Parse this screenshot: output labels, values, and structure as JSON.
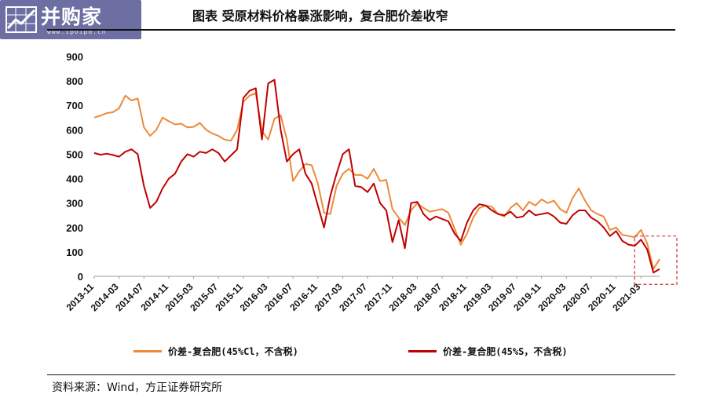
{
  "header": {
    "logo_text": "并购家",
    "logo_url": "www.ipoipo.cn",
    "title": "图表 受原材料价格暴涨影响，复合肥价差收窄"
  },
  "footer": {
    "source": "资料来源：Wind，方正证券研究所"
  },
  "chart_data": {
    "type": "line",
    "title": "图表 受原材料价格暴涨影响，复合肥价差收窄",
    "xlabel": "",
    "ylabel": "",
    "ylim": [
      0,
      900
    ],
    "yticks": [
      0,
      100,
      200,
      300,
      400,
      500,
      600,
      700,
      800,
      900
    ],
    "xlim": [
      "2013-11",
      "2021-06"
    ],
    "xticks": [
      "2013-11",
      "2014-03",
      "2014-07",
      "2014-11",
      "2015-03",
      "2015-07",
      "2015-11",
      "2016-03",
      "2016-07",
      "2016-11",
      "2017-03",
      "2017-07",
      "2017-11",
      "2018-03",
      "2018-07",
      "2018-11",
      "2019-03",
      "2019-07",
      "2019-11",
      "2020-03",
      "2020-07",
      "2020-11",
      "2021-03"
    ],
    "grid": false,
    "legend_position": "bottom",
    "highlight_box": {
      "x": [
        "2021-04",
        "2021-06"
      ],
      "y": [
        -20,
        165
      ],
      "style": "dashed",
      "color": "#d03030"
    },
    "series": [
      {
        "name": "价差-复合肥(45%Cl，不含税)",
        "color": "#ec8a3c",
        "points": [
          [
            "2013-11",
            650
          ],
          [
            "2013-12",
            658
          ],
          [
            "2014-01",
            668
          ],
          [
            "2014-02",
            672
          ],
          [
            "2014-03",
            688
          ],
          [
            "2014-04",
            740
          ],
          [
            "2014-05",
            720
          ],
          [
            "2014-06",
            728
          ],
          [
            "2014-07",
            610
          ],
          [
            "2014-08",
            575
          ],
          [
            "2014-09",
            600
          ],
          [
            "2014-10",
            650
          ],
          [
            "2014-11",
            635
          ],
          [
            "2014-12",
            622
          ],
          [
            "2015-01",
            625
          ],
          [
            "2015-02",
            610
          ],
          [
            "2015-03",
            612
          ],
          [
            "2015-04",
            628
          ],
          [
            "2015-05",
            600
          ],
          [
            "2015-06",
            585
          ],
          [
            "2015-07",
            575
          ],
          [
            "2015-08",
            560
          ],
          [
            "2015-09",
            555
          ],
          [
            "2015-10",
            600
          ],
          [
            "2015-11",
            715
          ],
          [
            "2015-12",
            740
          ],
          [
            "2016-01",
            750
          ],
          [
            "2016-02",
            595
          ],
          [
            "2016-03",
            560
          ],
          [
            "2016-04",
            645
          ],
          [
            "2016-05",
            660
          ],
          [
            "2016-06",
            560
          ],
          [
            "2016-07",
            390
          ],
          [
            "2016-08",
            430
          ],
          [
            "2016-09",
            460
          ],
          [
            "2016-10",
            455
          ],
          [
            "2016-11",
            380
          ],
          [
            "2016-12",
            260
          ],
          [
            "2017-01",
            255
          ],
          [
            "2017-02",
            370
          ],
          [
            "2017-03",
            420
          ],
          [
            "2017-04",
            440
          ],
          [
            "2017-05",
            415
          ],
          [
            "2017-06",
            415
          ],
          [
            "2017-07",
            400
          ],
          [
            "2017-08",
            440
          ],
          [
            "2017-09",
            390
          ],
          [
            "2017-10",
            395
          ],
          [
            "2017-11",
            275
          ],
          [
            "2017-12",
            240
          ],
          [
            "2018-01",
            210
          ],
          [
            "2018-02",
            270
          ],
          [
            "2018-03",
            300
          ],
          [
            "2018-04",
            280
          ],
          [
            "2018-05",
            265
          ],
          [
            "2018-06",
            270
          ],
          [
            "2018-07",
            275
          ],
          [
            "2018-08",
            260
          ],
          [
            "2018-09",
            195
          ],
          [
            "2018-10",
            130
          ],
          [
            "2018-11",
            175
          ],
          [
            "2018-12",
            240
          ],
          [
            "2019-01",
            280
          ],
          [
            "2019-02",
            290
          ],
          [
            "2019-03",
            285
          ],
          [
            "2019-04",
            255
          ],
          [
            "2019-05",
            245
          ],
          [
            "2019-06",
            280
          ],
          [
            "2019-07",
            300
          ],
          [
            "2019-08",
            270
          ],
          [
            "2019-09",
            305
          ],
          [
            "2019-10",
            290
          ],
          [
            "2019-11",
            315
          ],
          [
            "2019-12",
            300
          ],
          [
            "2020-01",
            310
          ],
          [
            "2020-02",
            275
          ],
          [
            "2020-03",
            260
          ],
          [
            "2020-04",
            320
          ],
          [
            "2020-05",
            360
          ],
          [
            "2020-06",
            310
          ],
          [
            "2020-07",
            270
          ],
          [
            "2020-08",
            255
          ],
          [
            "2020-09",
            245
          ],
          [
            "2020-10",
            190
          ],
          [
            "2020-11",
            200
          ],
          [
            "2020-12",
            170
          ],
          [
            "2021-01",
            165
          ],
          [
            "2021-02",
            160
          ],
          [
            "2021-03",
            190
          ],
          [
            "2021-04",
            135
          ],
          [
            "2021-05",
            30
          ],
          [
            "2021-06",
            70
          ]
        ]
      },
      {
        "name": "价差-复合肥(45%S，不含税)",
        "color": "#c00000",
        "points": [
          [
            "2013-11",
            505
          ],
          [
            "2013-12",
            498
          ],
          [
            "2014-01",
            502
          ],
          [
            "2014-02",
            497
          ],
          [
            "2014-03",
            490
          ],
          [
            "2014-04",
            510
          ],
          [
            "2014-05",
            520
          ],
          [
            "2014-06",
            500
          ],
          [
            "2014-07",
            370
          ],
          [
            "2014-08",
            280
          ],
          [
            "2014-09",
            305
          ],
          [
            "2014-10",
            360
          ],
          [
            "2014-11",
            400
          ],
          [
            "2014-12",
            420
          ],
          [
            "2015-01",
            470
          ],
          [
            "2015-02",
            500
          ],
          [
            "2015-03",
            490
          ],
          [
            "2015-04",
            510
          ],
          [
            "2015-05",
            505
          ],
          [
            "2015-06",
            520
          ],
          [
            "2015-07",
            505
          ],
          [
            "2015-08",
            470
          ],
          [
            "2015-09",
            495
          ],
          [
            "2015-10",
            520
          ],
          [
            "2015-11",
            730
          ],
          [
            "2015-12",
            760
          ],
          [
            "2016-01",
            770
          ],
          [
            "2016-02",
            560
          ],
          [
            "2016-03",
            790
          ],
          [
            "2016-04",
            805
          ],
          [
            "2016-05",
            600
          ],
          [
            "2016-06",
            470
          ],
          [
            "2016-07",
            500
          ],
          [
            "2016-08",
            520
          ],
          [
            "2016-09",
            420
          ],
          [
            "2016-10",
            380
          ],
          [
            "2016-11",
            290
          ],
          [
            "2016-12",
            200
          ],
          [
            "2017-01",
            330
          ],
          [
            "2017-02",
            420
          ],
          [
            "2017-03",
            500
          ],
          [
            "2017-04",
            520
          ],
          [
            "2017-05",
            370
          ],
          [
            "2017-06",
            365
          ],
          [
            "2017-07",
            345
          ],
          [
            "2017-08",
            380
          ],
          [
            "2017-09",
            300
          ],
          [
            "2017-10",
            270
          ],
          [
            "2017-11",
            140
          ],
          [
            "2017-12",
            230
          ],
          [
            "2018-01",
            115
          ],
          [
            "2018-02",
            300
          ],
          [
            "2018-03",
            305
          ],
          [
            "2018-04",
            255
          ],
          [
            "2018-05",
            230
          ],
          [
            "2018-06",
            245
          ],
          [
            "2018-07",
            235
          ],
          [
            "2018-08",
            225
          ],
          [
            "2018-09",
            175
          ],
          [
            "2018-10",
            145
          ],
          [
            "2018-11",
            220
          ],
          [
            "2018-12",
            270
          ],
          [
            "2019-01",
            295
          ],
          [
            "2019-02",
            290
          ],
          [
            "2019-03",
            270
          ],
          [
            "2019-04",
            255
          ],
          [
            "2019-05",
            250
          ],
          [
            "2019-06",
            265
          ],
          [
            "2019-07",
            240
          ],
          [
            "2019-08",
            245
          ],
          [
            "2019-09",
            270
          ],
          [
            "2019-10",
            250
          ],
          [
            "2019-11",
            255
          ],
          [
            "2019-12",
            260
          ],
          [
            "2020-01",
            245
          ],
          [
            "2020-02",
            220
          ],
          [
            "2020-03",
            215
          ],
          [
            "2020-04",
            250
          ],
          [
            "2020-05",
            270
          ],
          [
            "2020-06",
            270
          ],
          [
            "2020-07",
            240
          ],
          [
            "2020-08",
            225
          ],
          [
            "2020-09",
            200
          ],
          [
            "2020-10",
            165
          ],
          [
            "2020-11",
            185
          ],
          [
            "2020-12",
            145
          ],
          [
            "2021-01",
            130
          ],
          [
            "2021-02",
            125
          ],
          [
            "2021-03",
            150
          ],
          [
            "2021-04",
            110
          ],
          [
            "2021-05",
            15
          ],
          [
            "2021-06",
            30
          ]
        ]
      }
    ]
  }
}
